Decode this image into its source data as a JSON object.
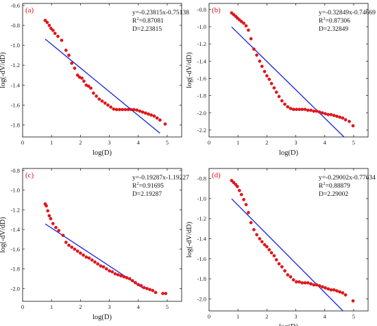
{
  "chart_data": [
    {
      "type": "scatter",
      "panel_label": "(a)",
      "xlabel": "log(D)",
      "ylabel": "log(-dV/dD)",
      "xlim": [
        0,
        5.5
      ],
      "ylim": [
        -1.92,
        -0.58
      ],
      "xticks": [
        0,
        1,
        2,
        3,
        4,
        5
      ],
      "yticks": [
        -0.6,
        -0.8,
        -1.0,
        -1.2,
        -1.4,
        -1.6,
        -1.8
      ],
      "annotations": [
        "y=-0.23815x-0.75138",
        "R2=0.87081",
        "D=2.23815"
      ],
      "fit": {
        "slope": -0.23815,
        "intercept": -0.75138,
        "x_range": [
          0.78,
          4.75
        ]
      },
      "series": [
        {
          "marker_color": "#e8141c",
          "points": [
            [
              0.78,
              -0.75
            ],
            [
              0.85,
              -0.77
            ],
            [
              0.92,
              -0.8
            ],
            [
              0.98,
              -0.83
            ],
            [
              1.05,
              -0.85
            ],
            [
              1.12,
              -0.88
            ],
            [
              1.22,
              -0.91
            ],
            [
              1.35,
              -0.95
            ],
            [
              1.5,
              -1.05
            ],
            [
              1.6,
              -1.1
            ],
            [
              1.7,
              -1.18
            ],
            [
              1.8,
              -1.23
            ],
            [
              1.9,
              -1.3
            ],
            [
              1.97,
              -1.32
            ],
            [
              2.05,
              -1.33
            ],
            [
              2.12,
              -1.36
            ],
            [
              2.2,
              -1.4
            ],
            [
              2.28,
              -1.41
            ],
            [
              2.36,
              -1.43
            ],
            [
              2.45,
              -1.48
            ],
            [
              2.55,
              -1.51
            ],
            [
              2.65,
              -1.54
            ],
            [
              2.75,
              -1.56
            ],
            [
              2.85,
              -1.58
            ],
            [
              2.95,
              -1.6
            ],
            [
              3.05,
              -1.62
            ],
            [
              3.15,
              -1.64
            ],
            [
              3.25,
              -1.645
            ],
            [
              3.35,
              -1.645
            ],
            [
              3.45,
              -1.645
            ],
            [
              3.55,
              -1.645
            ],
            [
              3.65,
              -1.645
            ],
            [
              3.75,
              -1.645
            ],
            [
              3.85,
              -1.645
            ],
            [
              3.95,
              -1.65
            ],
            [
              4.05,
              -1.66
            ],
            [
              4.15,
              -1.67
            ],
            [
              4.25,
              -1.68
            ],
            [
              4.35,
              -1.69
            ],
            [
              4.45,
              -1.7
            ],
            [
              4.55,
              -1.71
            ],
            [
              4.65,
              -1.73
            ],
            [
              4.75,
              -1.75
            ],
            [
              4.93,
              -1.79
            ]
          ]
        }
      ]
    },
    {
      "type": "scatter",
      "panel_label": "(b)",
      "xlabel": "log(D)",
      "ylabel": "log(-dV/dD)",
      "xlim": [
        0,
        5.5
      ],
      "ylim": [
        -2.28,
        -0.73
      ],
      "xticks": [
        0,
        1,
        2,
        3,
        4,
        5
      ],
      "yticks": [
        -0.8,
        -1.0,
        -1.2,
        -1.4,
        -1.6,
        -1.8,
        -2.0,
        -2.2
      ],
      "annotations": [
        "y=-0.32849x-0.74669",
        "R2=0.87306",
        "D=2.32849"
      ],
      "fit": {
        "slope": -0.32849,
        "intercept": -0.74669,
        "x_range": [
          0.78,
          4.85
        ]
      },
      "series": [
        {
          "marker_color": "#e8141c",
          "points": [
            [
              0.78,
              -0.84
            ],
            [
              0.85,
              -0.86
            ],
            [
              0.92,
              -0.88
            ],
            [
              0.98,
              -0.9
            ],
            [
              1.05,
              -0.92
            ],
            [
              1.12,
              -0.94
            ],
            [
              1.2,
              -0.96
            ],
            [
              1.28,
              -0.99
            ],
            [
              1.36,
              -1.04
            ],
            [
              1.45,
              -1.14
            ],
            [
              1.55,
              -1.26
            ],
            [
              1.65,
              -1.33
            ],
            [
              1.75,
              -1.4
            ],
            [
              1.83,
              -1.46
            ],
            [
              1.92,
              -1.52
            ],
            [
              2.0,
              -1.57
            ],
            [
              2.08,
              -1.61
            ],
            [
              2.16,
              -1.66
            ],
            [
              2.25,
              -1.71
            ],
            [
              2.33,
              -1.76
            ],
            [
              2.42,
              -1.81
            ],
            [
              2.52,
              -1.86
            ],
            [
              2.62,
              -1.9
            ],
            [
              2.72,
              -1.93
            ],
            [
              2.82,
              -1.95
            ],
            [
              2.92,
              -1.96
            ],
            [
              3.02,
              -1.96
            ],
            [
              3.12,
              -1.96
            ],
            [
              3.22,
              -1.96
            ],
            [
              3.32,
              -1.96
            ],
            [
              3.42,
              -1.97
            ],
            [
              3.52,
              -1.97
            ],
            [
              3.62,
              -1.98
            ],
            [
              3.72,
              -1.98
            ],
            [
              3.82,
              -1.99
            ],
            [
              3.92,
              -2.0
            ],
            [
              4.02,
              -2.01
            ],
            [
              4.12,
              -2.02
            ],
            [
              4.22,
              -2.02
            ],
            [
              4.32,
              -2.03
            ],
            [
              4.42,
              -2.04
            ],
            [
              4.52,
              -2.05
            ],
            [
              4.62,
              -2.06
            ],
            [
              4.72,
              -2.08
            ],
            [
              4.85,
              -2.1
            ],
            [
              4.98,
              -2.15
            ]
          ]
        }
      ]
    },
    {
      "type": "scatter",
      "panel_label": "(c)",
      "xlabel": "log(D)",
      "ylabel": "log(-dV/dD)",
      "xlim": [
        0,
        5.5
      ],
      "ylim": [
        -2.13,
        -0.78
      ],
      "xticks": [
        0,
        1,
        2,
        3,
        4,
        5
      ],
      "yticks": [
        -0.8,
        -1.0,
        -1.2,
        -1.4,
        -1.6,
        -1.8,
        -2.0
      ],
      "annotations": [
        "y=-0.19287x-1.19227",
        "R2=0.91695",
        "D=2.19287"
      ],
      "fit": {
        "slope": -0.19287,
        "intercept": -1.19227,
        "x_range": [
          0.78,
          4.2
        ]
      },
      "series": [
        {
          "marker_color": "#e8141c",
          "points": [
            [
              0.78,
              -1.14
            ],
            [
              0.82,
              -1.16
            ],
            [
              0.87,
              -1.21
            ],
            [
              0.92,
              -1.26
            ],
            [
              0.97,
              -1.29
            ],
            [
              1.05,
              -1.34
            ],
            [
              1.15,
              -1.38
            ],
            [
              1.25,
              -1.41
            ],
            [
              1.4,
              -1.46
            ],
            [
              1.5,
              -1.53
            ],
            [
              1.6,
              -1.56
            ],
            [
              1.7,
              -1.58
            ],
            [
              1.8,
              -1.6
            ],
            [
              1.9,
              -1.62
            ],
            [
              2.0,
              -1.64
            ],
            [
              2.1,
              -1.66
            ],
            [
              2.2,
              -1.68
            ],
            [
              2.3,
              -1.69
            ],
            [
              2.4,
              -1.71
            ],
            [
              2.5,
              -1.73
            ],
            [
              2.6,
              -1.75
            ],
            [
              2.7,
              -1.77
            ],
            [
              2.8,
              -1.78
            ],
            [
              2.9,
              -1.8
            ],
            [
              3.0,
              -1.82
            ],
            [
              3.1,
              -1.83
            ],
            [
              3.2,
              -1.85
            ],
            [
              3.3,
              -1.86
            ],
            [
              3.4,
              -1.87
            ],
            [
              3.5,
              -1.88
            ],
            [
              3.6,
              -1.89
            ],
            [
              3.7,
              -1.9
            ],
            [
              3.8,
              -1.92
            ],
            [
              3.9,
              -1.94
            ],
            [
              4.0,
              -1.96
            ],
            [
              4.1,
              -1.97
            ],
            [
              4.2,
              -1.99
            ],
            [
              4.3,
              -2.0
            ],
            [
              4.4,
              -2.01
            ],
            [
              4.5,
              -2.02
            ],
            [
              4.6,
              -2.04
            ],
            [
              4.85,
              -2.05
            ],
            [
              4.95,
              -2.05
            ]
          ]
        }
      ]
    },
    {
      "type": "scatter",
      "panel_label": "(d)",
      "xlabel": "log(D)",
      "ylabel": "log(-dV/dD)",
      "xlim": [
        0,
        5.5
      ],
      "ylim": [
        -2.12,
        -0.7
      ],
      "xticks": [
        0,
        1,
        2,
        3,
        4,
        5
      ],
      "yticks": [
        -0.8,
        -1.0,
        -1.2,
        -1.4,
        -1.6,
        -1.8,
        -2.0
      ],
      "annotations": [
        "y=-0.29002x-0.77634",
        "R2=0.88879",
        "D=2.29002"
      ],
      "fit": {
        "slope": -0.29002,
        "intercept": -0.77634,
        "x_range": [
          0.78,
          4.95
        ]
      },
      "series": [
        {
          "marker_color": "#e8141c",
          "points": [
            [
              0.78,
              -0.82
            ],
            [
              0.85,
              -0.84
            ],
            [
              0.92,
              -0.86
            ],
            [
              0.98,
              -0.88
            ],
            [
              1.05,
              -0.92
            ],
            [
              1.12,
              -0.96
            ],
            [
              1.2,
              -1.01
            ],
            [
              1.28,
              -1.06
            ],
            [
              1.36,
              -1.14
            ],
            [
              1.45,
              -1.24
            ],
            [
              1.55,
              -1.31
            ],
            [
              1.65,
              -1.36
            ],
            [
              1.75,
              -1.4
            ],
            [
              1.83,
              -1.43
            ],
            [
              1.92,
              -1.46
            ],
            [
              2.0,
              -1.48
            ],
            [
              2.08,
              -1.51
            ],
            [
              2.16,
              -1.54
            ],
            [
              2.25,
              -1.57
            ],
            [
              2.33,
              -1.61
            ],
            [
              2.42,
              -1.65
            ],
            [
              2.52,
              -1.68
            ],
            [
              2.62,
              -1.72
            ],
            [
              2.72,
              -1.76
            ],
            [
              2.82,
              -1.78
            ],
            [
              2.92,
              -1.81
            ],
            [
              3.02,
              -1.83
            ],
            [
              3.12,
              -1.83
            ],
            [
              3.22,
              -1.84
            ],
            [
              3.32,
              -1.84
            ],
            [
              3.42,
              -1.84
            ],
            [
              3.52,
              -1.85
            ],
            [
              3.62,
              -1.86
            ],
            [
              3.72,
              -1.86
            ],
            [
              3.82,
              -1.87
            ],
            [
              3.92,
              -1.88
            ],
            [
              4.02,
              -1.89
            ],
            [
              4.12,
              -1.9
            ],
            [
              4.22,
              -1.91
            ],
            [
              4.32,
              -1.91
            ],
            [
              4.42,
              -1.92
            ],
            [
              4.52,
              -1.93
            ],
            [
              4.62,
              -1.94
            ],
            [
              4.72,
              -1.96
            ],
            [
              4.98,
              -2.02
            ]
          ]
        }
      ]
    }
  ]
}
